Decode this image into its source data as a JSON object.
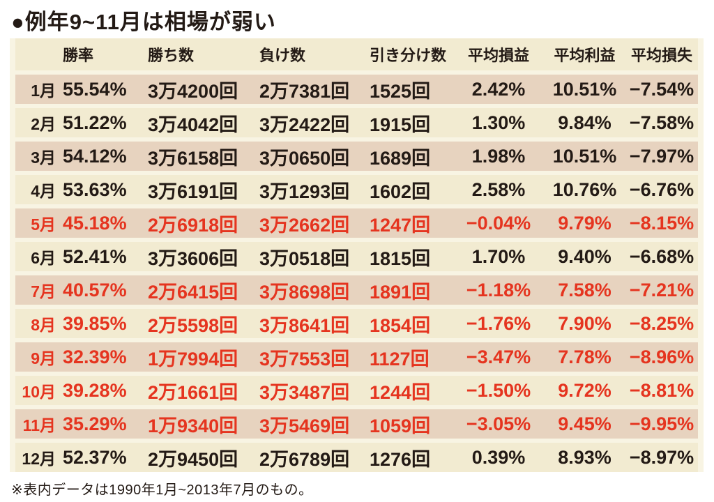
{
  "title": "●例年9~11月は相場が弱い",
  "footnote": "※表内データは1990年1月~2013年7月のもの。",
  "colors": {
    "red": "#e5341f",
    "black": "#231a15",
    "row_tan": "#e7d3bf",
    "row_cream": "#f2ebd1",
    "panel": "#f8f4e3",
    "page": "#ffffff"
  },
  "table": {
    "headers": [
      "",
      "勝率",
      "勝ち数",
      "負け数",
      "引き分け数",
      "平均損益",
      "平均利益",
      "平均損失"
    ],
    "rows": [
      {
        "month": "1月",
        "values": [
          "55.54%",
          "3万4200回",
          "2万7381回",
          "1525回",
          "2.42%",
          "10.51%",
          "−7.54%"
        ],
        "highlight": false
      },
      {
        "month": "2月",
        "values": [
          "51.22%",
          "3万4042回",
          "3万2422回",
          "1915回",
          "1.30%",
          "9.84%",
          "−7.58%"
        ],
        "highlight": false
      },
      {
        "month": "3月",
        "values": [
          "54.12%",
          "3万6158回",
          "3万0650回",
          "1689回",
          "1.98%",
          "10.51%",
          "−7.97%"
        ],
        "highlight": false
      },
      {
        "month": "4月",
        "values": [
          "53.63%",
          "3万6191回",
          "3万1293回",
          "1602回",
          "2.58%",
          "10.76%",
          "−6.76%"
        ],
        "highlight": false
      },
      {
        "month": "5月",
        "values": [
          "45.18%",
          "2万6918回",
          "3万2662回",
          "1247回",
          "−0.04%",
          "9.79%",
          "−8.15%"
        ],
        "highlight": true
      },
      {
        "month": "6月",
        "values": [
          "52.41%",
          "3万3606回",
          "3万0518回",
          "1815回",
          "1.70%",
          "9.40%",
          "−6.68%"
        ],
        "highlight": false
      },
      {
        "month": "7月",
        "values": [
          "40.57%",
          "2万6415回",
          "3万8698回",
          "1891回",
          "−1.18%",
          "7.58%",
          "−7.21%"
        ],
        "highlight": true
      },
      {
        "month": "8月",
        "values": [
          "39.85%",
          "2万5598回",
          "3万8641回",
          "1854回",
          "−1.76%",
          "7.90%",
          "−8.25%"
        ],
        "highlight": true
      },
      {
        "month": "9月",
        "values": [
          "32.39%",
          "1万7994回",
          "3万7553回",
          "1127回",
          "−3.47%",
          "7.78%",
          "−8.96%"
        ],
        "highlight": true
      },
      {
        "month": "10月",
        "values": [
          "39.28%",
          "2万1661回",
          "3万3487回",
          "1244回",
          "−1.50%",
          "9.72%",
          "−8.81%"
        ],
        "highlight": true
      },
      {
        "month": "11月",
        "values": [
          "35.29%",
          "1万9340回",
          "3万5469回",
          "1059回",
          "−3.05%",
          "9.45%",
          "−9.95%"
        ],
        "highlight": true
      },
      {
        "month": "12月",
        "values": [
          "52.37%",
          "2万9450回",
          "2万6789回",
          "1276回",
          "0.39%",
          "8.93%",
          "−8.97%"
        ],
        "highlight": false
      }
    ]
  }
}
